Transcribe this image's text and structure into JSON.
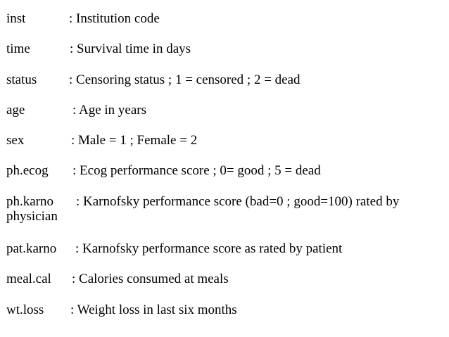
{
  "variables": [
    {
      "term": "inst",
      "desc": ": Institution code"
    },
    {
      "term": "time",
      "desc": ": Survival time in days"
    },
    {
      "term": "status",
      "desc": ": Censoring status ; 1 = censored ; 2 = dead"
    },
    {
      "term": "age",
      "desc": ": Age in years"
    },
    {
      "term": "sex",
      "desc": ": Male = 1 ; Female = 2"
    },
    {
      "term": "ph.ecog",
      "desc": ": Ecog performance score ; 0= good ; 5 = dead"
    },
    {
      "term": "ph.karno",
      "desc": ": Karnofsky performance score (bad=0 ; good=100) rated by",
      "desc_cont": "physician"
    },
    {
      "term": "pat.karno",
      "desc": ": Karnofsky performance score as rated by patient"
    },
    {
      "term": "meal.cal",
      "desc": ": Calories consumed at meals"
    },
    {
      "term": "wt.loss",
      "desc": ": Weight loss in last six months"
    }
  ]
}
